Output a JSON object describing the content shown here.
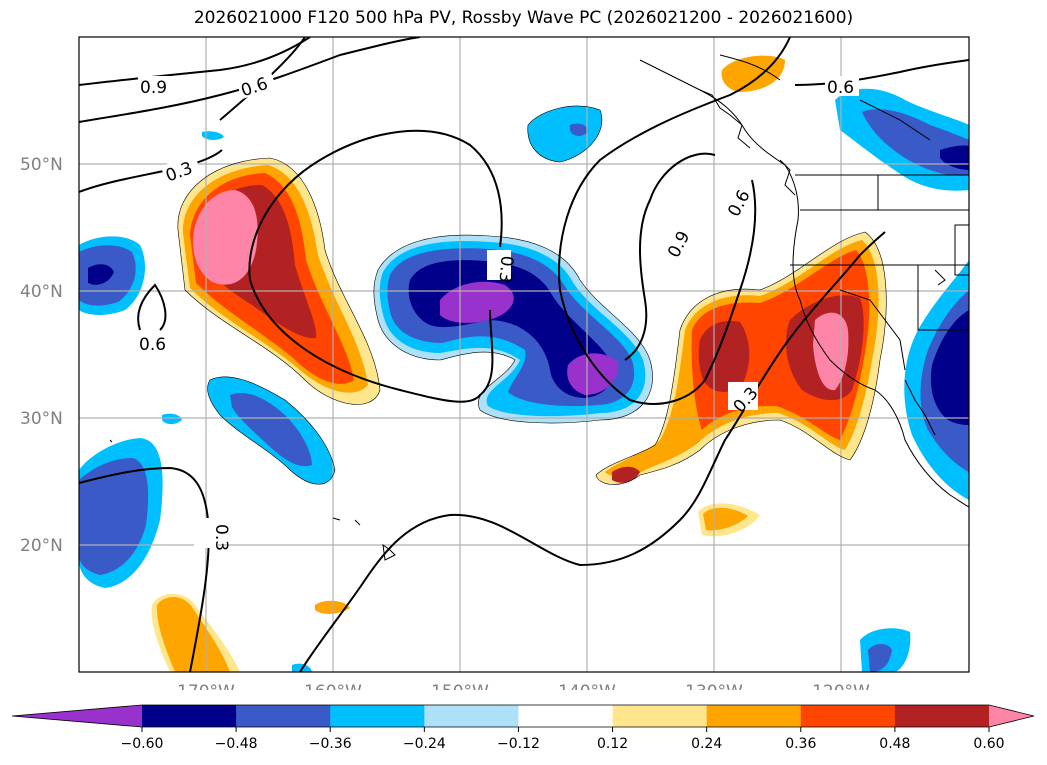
{
  "title": "2026021000 F120 500 hPa PV, Rossby Wave PC (2026021200 - 2026021600)",
  "map": {
    "projection": "equirectangular",
    "lon_range": [
      -180,
      -110
    ],
    "lat_range": [
      10,
      60
    ],
    "lat_labels": [
      "20°N",
      "30°N",
      "40°N",
      "50°N"
    ],
    "lon_labels": [
      "170°W",
      "160°W",
      "150°W",
      "140°W",
      "130°W",
      "120°W"
    ],
    "contour_labels": [
      "0.9",
      "0.6",
      "0.3",
      "0.6",
      "0.3",
      "0.9",
      "0.6",
      "0.6",
      "0.3",
      "0.3"
    ]
  },
  "colorbar": {
    "extend": "both",
    "colors": [
      "#9932CC",
      "#00008B",
      "#3A5BC7",
      "#00BFFF",
      "#ADE1FA",
      "#FFFFFF",
      "#FFE68C",
      "#FFA500",
      "#FF4500",
      "#B22222",
      "#FF85A8"
    ],
    "tick_labels": [
      "−0.60",
      "−0.48",
      "−0.36",
      "−0.24",
      "−0.12",
      "0.12",
      "0.24",
      "0.36",
      "0.48",
      "0.60"
    ]
  },
  "legend_colors": {
    "land": "#000000",
    "grid": "#b0b0b0",
    "contour": "#000000"
  }
}
